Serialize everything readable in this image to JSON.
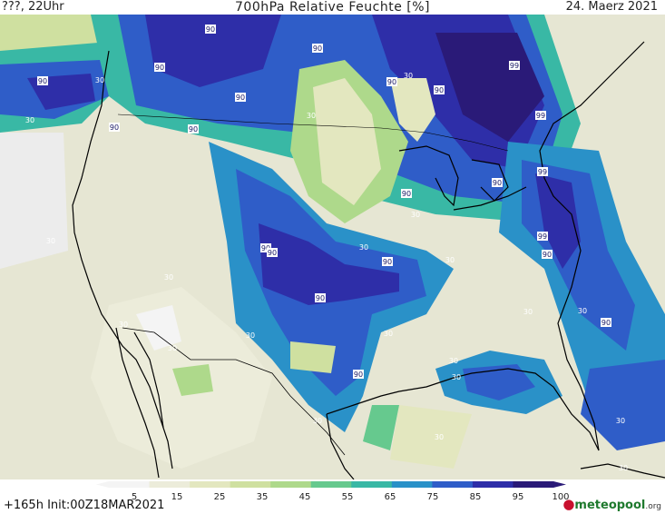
{
  "header": {
    "left": "???, 22Uhr",
    "title": "700hPa Relative Feuchte [%]",
    "date": "24. Maerz 2021"
  },
  "footer": {
    "init": "+165h  Init:00Z18MAR2021",
    "logo_main": "meteopool",
    "logo_tld": ".org"
  },
  "legend": {
    "ticks": [
      "5",
      "15",
      "25",
      "35",
      "45",
      "55",
      "65",
      "75",
      "85",
      "95",
      "100"
    ],
    "colors": [
      "#f4f4f4",
      "#ececda",
      "#e3e7bf",
      "#cfe0a0",
      "#aed98b",
      "#66c98e",
      "#39b8a5",
      "#2a91c8",
      "#2f5dc8",
      "#2e2ea8",
      "#2a1a78"
    ]
  },
  "map": {
    "contour_labels": [
      {
        "text": "90"
      },
      {
        "text": "90"
      },
      {
        "text": "30"
      },
      {
        "text": "90"
      },
      {
        "text": "90"
      },
      {
        "text": "30"
      },
      {
        "text": "90"
      },
      {
        "text": "90"
      },
      {
        "text": "30"
      },
      {
        "text": "90"
      },
      {
        "text": "99"
      },
      {
        "text": "90"
      },
      {
        "text": "99"
      },
      {
        "text": "30"
      },
      {
        "text": "90"
      },
      {
        "text": "90"
      },
      {
        "text": "99"
      },
      {
        "text": "90"
      },
      {
        "text": "30"
      },
      {
        "text": "30"
      },
      {
        "text": "90"
      },
      {
        "text": "30"
      },
      {
        "text": "90"
      },
      {
        "text": "90"
      },
      {
        "text": "30"
      },
      {
        "text": "30"
      },
      {
        "text": "99"
      },
      {
        "text": "90"
      },
      {
        "text": "30"
      },
      {
        "text": "30"
      },
      {
        "text": "30"
      },
      {
        "text": "30"
      },
      {
        "text": "90"
      },
      {
        "text": "30"
      },
      {
        "text": "90"
      },
      {
        "text": "30"
      },
      {
        "text": "30"
      },
      {
        "text": "90"
      },
      {
        "text": "30"
      },
      {
        "text": "30"
      },
      {
        "text": "30"
      },
      {
        "text": "30"
      },
      {
        "text": "30"
      }
    ]
  }
}
